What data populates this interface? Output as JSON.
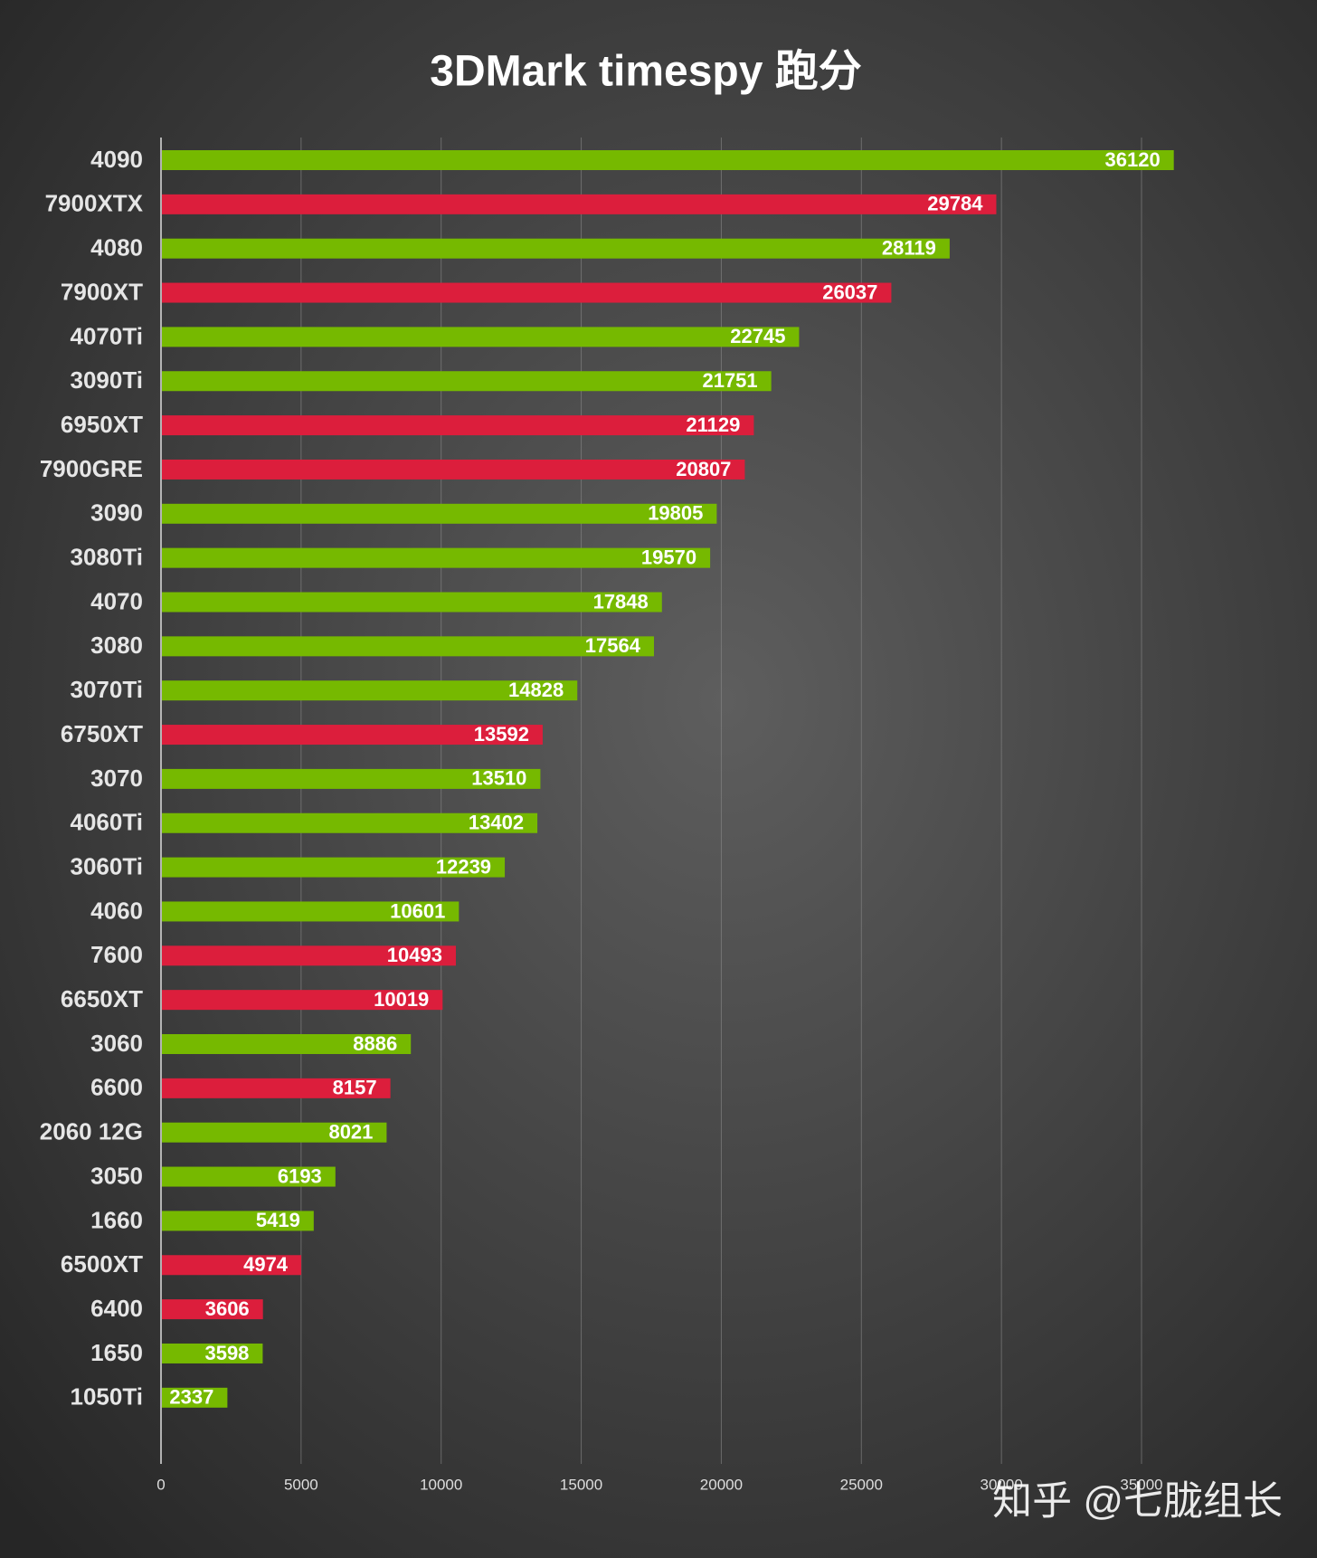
{
  "chart_data": {
    "type": "bar",
    "orientation": "horizontal",
    "title": "3DMark timespy 跑分",
    "categories": [
      "4090",
      "7900XTX",
      "4080",
      "7900XT",
      "4070Ti",
      "3090Ti",
      "6950XT",
      "7900GRE",
      "3090",
      "3080Ti",
      "4070",
      "3080",
      "3070Ti",
      "6750XT",
      "3070",
      "4060Ti",
      "3060Ti",
      "4060",
      "7600",
      "6650XT",
      "3060",
      "6600",
      "2060 12G",
      "3050",
      "1660",
      "6500XT",
      "6400",
      "1650",
      "1050Ti"
    ],
    "values": [
      36120,
      29784,
      28119,
      26037,
      22745,
      21751,
      21129,
      20807,
      19805,
      19570,
      17848,
      17564,
      14828,
      13592,
      13510,
      13402,
      12239,
      10601,
      10493,
      10019,
      8886,
      8157,
      8021,
      6193,
      5419,
      4974,
      3606,
      3598,
      2337
    ],
    "colors": [
      "#76b900",
      "#dc1e3c",
      "#76b900",
      "#dc1e3c",
      "#76b900",
      "#76b900",
      "#dc1e3c",
      "#dc1e3c",
      "#76b900",
      "#76b900",
      "#76b900",
      "#76b900",
      "#76b900",
      "#dc1e3c",
      "#76b900",
      "#76b900",
      "#76b900",
      "#76b900",
      "#dc1e3c",
      "#dc1e3c",
      "#76b900",
      "#dc1e3c",
      "#76b900",
      "#76b900",
      "#76b900",
      "#dc1e3c",
      "#dc1e3c",
      "#76b900",
      "#76b900"
    ],
    "xlim": [
      0,
      35000
    ],
    "xticks": [
      0,
      5000,
      10000,
      15000,
      20000,
      25000,
      30000,
      35000
    ],
    "grid": true,
    "watermark": "知乎 @七胧组长"
  }
}
